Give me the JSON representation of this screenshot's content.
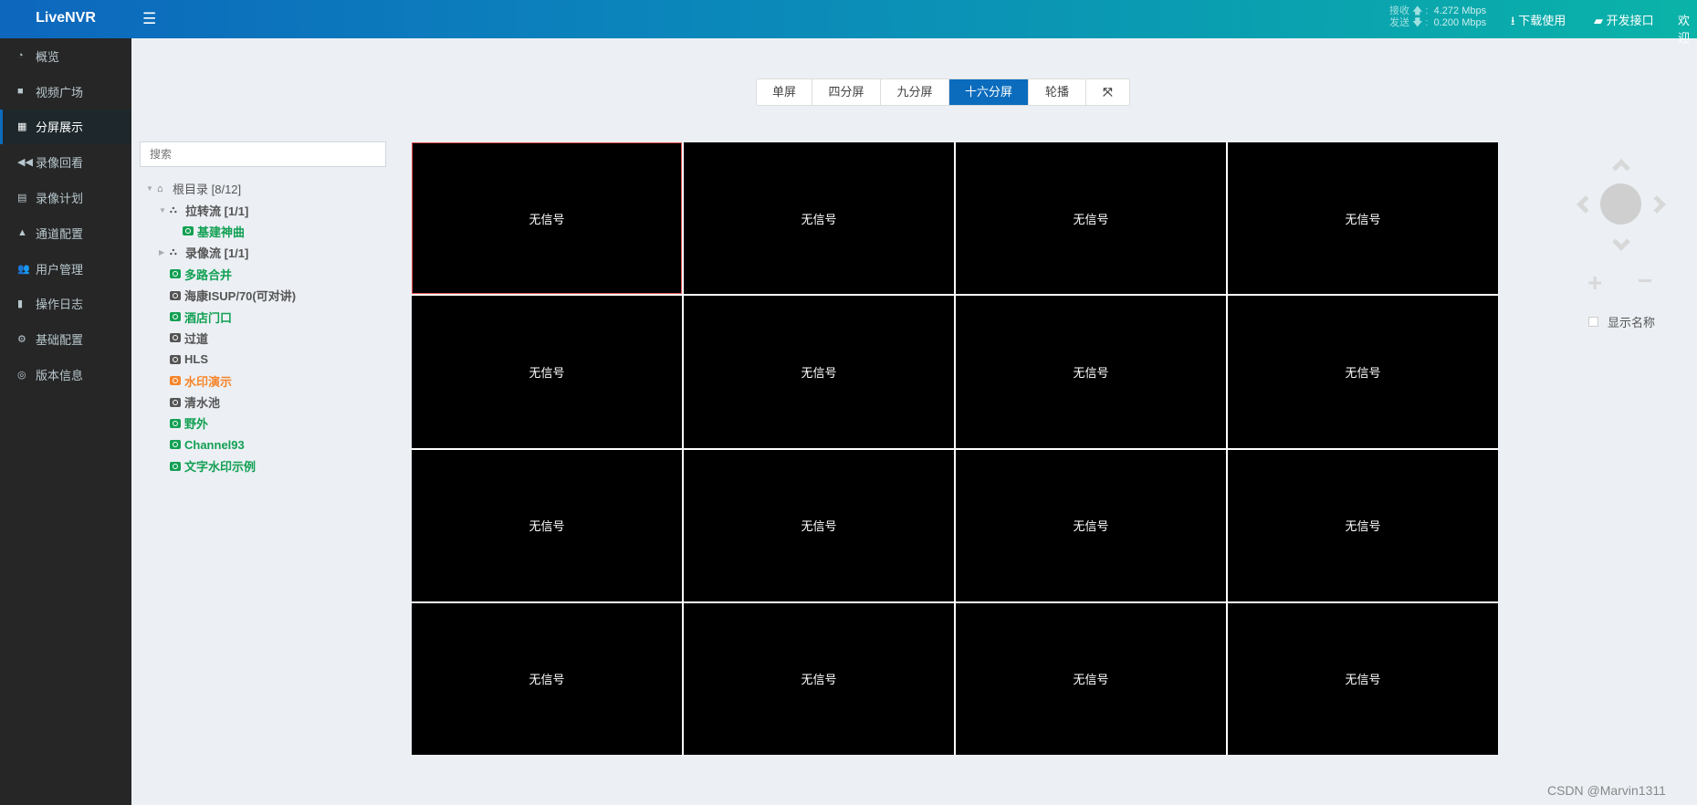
{
  "header": {
    "logo": "LiveNVR",
    "recv_label": "接收",
    "recv_rate": "4.272 Mbps",
    "send_label": "发送",
    "send_rate": "0.200 Mbps",
    "download": "下载使用",
    "api": "开发接口",
    "welcome": "欢迎"
  },
  "sidebar": {
    "items": [
      {
        "label": "概览",
        "icon": "dashboard-icon"
      },
      {
        "label": "视频广场",
        "icon": "video-icon"
      },
      {
        "label": "分屏展示",
        "icon": "grid-icon",
        "active": true
      },
      {
        "label": "录像回看",
        "icon": "backward-icon"
      },
      {
        "label": "录像计划",
        "icon": "calendar-icon"
      },
      {
        "label": "通道配置",
        "icon": "road-icon"
      },
      {
        "label": "用户管理",
        "icon": "users-icon"
      },
      {
        "label": "操作日志",
        "icon": "file-icon"
      },
      {
        "label": "基础配置",
        "icon": "gears-icon"
      },
      {
        "label": "版本信息",
        "icon": "lifebuoy-icon"
      }
    ]
  },
  "search": {
    "placeholder": "搜索"
  },
  "tree": [
    {
      "label": "根目录 [8/12]",
      "type": "root",
      "level": 0,
      "color": "gray",
      "caret": "down"
    },
    {
      "label": "拉转流 [1/1]",
      "type": "folder",
      "level": 1,
      "color": "gray",
      "caret": "down"
    },
    {
      "label": "基建神曲",
      "type": "camera",
      "level": 2,
      "color": "green"
    },
    {
      "label": "录像流 [1/1]",
      "type": "folder",
      "level": 1,
      "color": "gray",
      "caret": "right"
    },
    {
      "label": "多路合并",
      "type": "camera",
      "level": 1,
      "color": "green"
    },
    {
      "label": "海康ISUP/70(可对讲)",
      "type": "camera",
      "level": 1,
      "color": "gray"
    },
    {
      "label": "酒店门口",
      "type": "camera",
      "level": 1,
      "color": "green"
    },
    {
      "label": "过道",
      "type": "camera",
      "level": 1,
      "color": "gray"
    },
    {
      "label": "HLS",
      "type": "camera",
      "level": 1,
      "color": "gray"
    },
    {
      "label": "水印演示",
      "type": "camera",
      "level": 1,
      "color": "orange"
    },
    {
      "label": "清水池",
      "type": "camera",
      "level": 1,
      "color": "gray"
    },
    {
      "label": "野外",
      "type": "camera",
      "level": 1,
      "color": "green"
    },
    {
      "label": "Channel93",
      "type": "camera",
      "level": 1,
      "color": "green"
    },
    {
      "label": "文字水印示例",
      "type": "camera",
      "level": 1,
      "color": "green"
    }
  ],
  "layout_buttons": [
    {
      "label": "单屏"
    },
    {
      "label": "四分屏"
    },
    {
      "label": "九分屏"
    },
    {
      "label": "十六分屏",
      "active": true
    },
    {
      "label": "轮播"
    },
    {
      "label": "",
      "icon": "fullscreen-icon"
    }
  ],
  "grid": {
    "no_signal": "无信号",
    "cells": 16,
    "selected": 0
  },
  "ptz": {
    "show_names": "显示名称",
    "show_names_checked": false
  },
  "colors": {
    "accent": "#0b6cbd",
    "green": "#12a053",
    "orange": "#f7852a",
    "sidebar": "#262626"
  },
  "watermark": "CSDN @Marvin1311"
}
